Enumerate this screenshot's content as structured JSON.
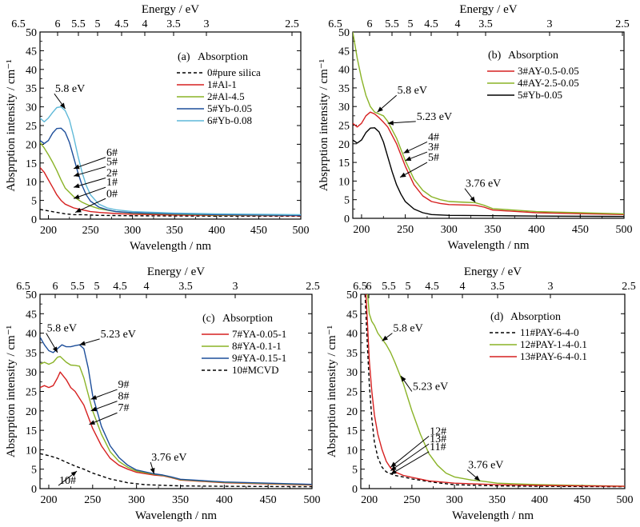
{
  "figure": {
    "background": "#ffffff"
  },
  "chart_data": [
    {
      "type": "line",
      "panel_label": "(a)",
      "title": "Absorption",
      "xlabel": "Wavelength / nm",
      "ylabel": "Absprption intensity / cm⁻¹",
      "top_xlabel": "Energy / eV",
      "xlim": [
        190,
        500
      ],
      "ylim": [
        0,
        50
      ],
      "xticks": [
        200,
        250,
        300,
        350,
        400,
        450,
        500
      ],
      "yticks": [
        0,
        5,
        10,
        15,
        20,
        25,
        30,
        35,
        40,
        45,
        50
      ],
      "top_ticks": [
        "6.5",
        "6",
        "5.5",
        "5",
        "4.5",
        "4",
        "3.5",
        "3",
        "2.5"
      ],
      "grid": false,
      "legend_position": "top-right",
      "series": [
        {
          "name": "0#pure silica",
          "color": "#000000",
          "dash": true,
          "x": [
            190,
            200,
            210,
            220,
            230,
            240,
            260,
            300,
            400,
            500
          ],
          "y": [
            2.6,
            2.2,
            1.8,
            1.4,
            1.2,
            1.2,
            1.0,
            0.9,
            0.8,
            0.8
          ]
        },
        {
          "name": "1#Al-1",
          "color": "#d62020",
          "dash": false,
          "x": [
            190,
            195,
            200,
            205,
            210,
            215,
            220,
            230,
            240,
            250,
            260,
            280,
            300,
            350,
            400,
            500
          ],
          "y": [
            13.8,
            12.5,
            10.5,
            8.5,
            6.5,
            5.0,
            4.0,
            3.0,
            2.5,
            2.0,
            1.8,
            1.5,
            1.3,
            1.1,
            1.0,
            0.9
          ]
        },
        {
          "name": "2#Al-4.5",
          "color": "#8ab327",
          "dash": false,
          "x": [
            190,
            195,
            200,
            205,
            210,
            215,
            220,
            230,
            240,
            250,
            260,
            280,
            300,
            350,
            400,
            500
          ],
          "y": [
            20.5,
            19.0,
            17.2,
            15.2,
            13.0,
            10.5,
            8.3,
            6.0,
            4.5,
            3.5,
            2.8,
            2.0,
            1.6,
            1.3,
            1.1,
            1.0
          ]
        },
        {
          "name": "5#Yb-0.05",
          "color": "#1d4e9a",
          "dash": false,
          "x": [
            190,
            195,
            200,
            205,
            210,
            215,
            220,
            225,
            230,
            235,
            240,
            245,
            250,
            260,
            270,
            280,
            300,
            350,
            400,
            500
          ],
          "y": [
            21.0,
            20.2,
            21.0,
            23.0,
            24.2,
            24.3,
            23.2,
            20.5,
            16.5,
            12.5,
            9.0,
            6.5,
            4.8,
            3.2,
            2.5,
            2.0,
            1.7,
            1.4,
            1.2,
            1.0
          ]
        },
        {
          "name": "6#Yb-0.08",
          "color": "#5fb9d8",
          "dash": false,
          "x": [
            190,
            195,
            200,
            205,
            210,
            215,
            220,
            225,
            230,
            235,
            240,
            245,
            250,
            260,
            270,
            280,
            300,
            350,
            400,
            500
          ],
          "y": [
            27.0,
            26.0,
            27.0,
            28.5,
            29.8,
            30.0,
            29.0,
            26.5,
            22.0,
            17.0,
            12.5,
            9.0,
            6.5,
            4.0,
            3.0,
            2.5,
            2.0,
            1.6,
            1.4,
            1.2
          ]
        }
      ],
      "annotations": [
        {
          "text": "5.8 eV",
          "x": 220,
          "y": 29.5,
          "tx": 207,
          "ty": 33.5
        },
        {
          "text": "6#",
          "x": 230,
          "y": 13.5,
          "tx": 268,
          "ty": 16.5
        },
        {
          "text": "5#",
          "x": 230,
          "y": 11.5,
          "tx": 268,
          "ty": 14.0
        },
        {
          "text": "2#",
          "x": 230,
          "y": 8.5,
          "tx": 268,
          "ty": 11.0
        },
        {
          "text": "1#",
          "x": 230,
          "y": 5.5,
          "tx": 268,
          "ty": 8.5
        },
        {
          "text": "0#",
          "x": 232,
          "y": 1.8,
          "tx": 268,
          "ty": 5.5
        }
      ]
    },
    {
      "type": "line",
      "panel_label": "(b)",
      "title": "Absorption",
      "xlabel": "Wavelength / nm",
      "ylabel": "Absprption intensity / cm⁻¹",
      "top_xlabel": "Energy / eV",
      "xlim": [
        190,
        500
      ],
      "ylim": [
        0,
        50
      ],
      "xticks": [
        200,
        250,
        300,
        350,
        400,
        450,
        500
      ],
      "yticks": [
        0,
        5,
        10,
        15,
        20,
        25,
        30,
        35,
        40,
        45,
        50
      ],
      "top_ticks": [
        "6.5",
        "6",
        "5.5",
        "5",
        "4.5",
        "4",
        "3.5",
        "3",
        "2.5"
      ],
      "grid": false,
      "legend_position": "top-right",
      "series": [
        {
          "name": "3#AY-0.5-0.05",
          "color": "#d62020",
          "dash": false,
          "x": [
            190,
            195,
            200,
            205,
            210,
            215,
            220,
            225,
            230,
            240,
            250,
            260,
            270,
            280,
            290,
            300,
            330,
            340,
            350,
            400,
            500
          ],
          "y": [
            25.5,
            24.5,
            25.5,
            27.5,
            28.5,
            28.0,
            27.0,
            25.8,
            24.5,
            20.0,
            14.0,
            9.0,
            6.0,
            4.5,
            4.0,
            3.7,
            3.5,
            3.0,
            2.2,
            1.5,
            1.0
          ]
        },
        {
          "name": "4#AY-2.5-0.05",
          "color": "#8ab327",
          "dash": false,
          "x": [
            190,
            195,
            200,
            205,
            210,
            215,
            220,
            225,
            230,
            240,
            250,
            260,
            270,
            280,
            290,
            300,
            320,
            330,
            340,
            350,
            400,
            500
          ],
          "y": [
            50,
            43.0,
            37.5,
            33.0,
            30.0,
            28.5,
            28.0,
            27.5,
            26.0,
            21.5,
            15.5,
            10.5,
            7.5,
            5.8,
            5.0,
            4.5,
            4.3,
            4.2,
            3.5,
            2.6,
            1.8,
            1.2
          ]
        },
        {
          "name": "5#Yb-0.05",
          "color": "#000000",
          "dash": false,
          "x": [
            190,
            195,
            200,
            205,
            210,
            215,
            220,
            225,
            230,
            235,
            240,
            245,
            250,
            260,
            270,
            280,
            300,
            350,
            400,
            500
          ],
          "y": [
            21.0,
            20.2,
            21.0,
            23.0,
            24.2,
            24.3,
            23.2,
            20.5,
            16.5,
            12.5,
            9.0,
            6.5,
            4.5,
            2.5,
            1.5,
            1.0,
            0.8,
            0.7,
            0.6,
            0.5
          ]
        }
      ],
      "annotations": [
        {
          "text": "5.8 eV",
          "x": 218,
          "y": 28.5,
          "tx": 240,
          "ty": 33.0
        },
        {
          "text": "5.23 eV",
          "x": 230,
          "y": 25.5,
          "tx": 262,
          "ty": 26.0
        },
        {
          "text": "4#",
          "x": 248,
          "y": 17.5,
          "tx": 275,
          "ty": 20.5
        },
        {
          "text": "3#",
          "x": 250,
          "y": 15.5,
          "tx": 275,
          "ty": 17.8
        },
        {
          "text": "5#",
          "x": 244,
          "y": 11.0,
          "tx": 275,
          "ty": 15.0
        },
        {
          "text": "3.76 eV",
          "x": 330,
          "y": 4.3,
          "tx": 318,
          "ty": 8.0
        }
      ]
    },
    {
      "type": "line",
      "panel_label": "(c)",
      "title": "Absorption",
      "xlabel": "Wavelength / nm",
      "ylabel": "Absprption intensity / cm⁻¹",
      "top_xlabel": "Energy / eV",
      "xlim": [
        190,
        500
      ],
      "ylim": [
        0,
        50
      ],
      "xticks": [
        200,
        250,
        300,
        350,
        400,
        450,
        500
      ],
      "yticks": [
        0,
        5,
        10,
        15,
        20,
        25,
        30,
        35,
        40,
        45,
        50
      ],
      "top_ticks": [
        "6.5",
        "6",
        "5.5",
        "5",
        "4.5",
        "4",
        "3.5",
        "3",
        "2.5"
      ],
      "grid": false,
      "legend_position": "top-right",
      "series": [
        {
          "name": "7#YA-0.05-1",
          "color": "#d62020",
          "dash": false,
          "x": [
            190,
            195,
            200,
            205,
            210,
            213,
            220,
            225,
            230,
            240,
            250,
            260,
            270,
            280,
            290,
            300,
            320,
            330,
            340,
            350,
            400,
            500
          ],
          "y": [
            26.0,
            26.5,
            26.0,
            26.5,
            28.5,
            30.0,
            28.0,
            26.0,
            25.0,
            21.5,
            15.5,
            11.0,
            7.8,
            6.0,
            5.0,
            4.2,
            3.5,
            3.3,
            2.8,
            2.2,
            1.5,
            0.9
          ]
        },
        {
          "name": "8#YA-0.1-1",
          "color": "#8ab327",
          "dash": false,
          "x": [
            190,
            195,
            200,
            205,
            210,
            213,
            220,
            225,
            230,
            235,
            240,
            250,
            260,
            270,
            280,
            290,
            300,
            320,
            330,
            340,
            350,
            400,
            500
          ],
          "y": [
            32.0,
            32.5,
            32.0,
            32.5,
            33.8,
            34.0,
            32.5,
            31.8,
            31.7,
            31.5,
            28.5,
            20.0,
            14.0,
            9.5,
            7.0,
            5.5,
            4.5,
            3.7,
            3.4,
            2.9,
            2.3,
            1.6,
            1.0
          ]
        },
        {
          "name": "9#YA-0.15-1",
          "color": "#1d4e9a",
          "dash": false,
          "x": [
            190,
            195,
            200,
            205,
            210,
            215,
            220,
            225,
            230,
            235,
            240,
            245,
            250,
            260,
            270,
            280,
            290,
            300,
            320,
            330,
            340,
            350,
            400,
            500
          ],
          "y": [
            39.0,
            37.0,
            35.5,
            35.0,
            36.0,
            37.0,
            36.5,
            36.5,
            36.8,
            37.0,
            36.0,
            31.0,
            24.0,
            16.0,
            11.0,
            8.0,
            6.0,
            4.8,
            3.8,
            3.5,
            3.0,
            2.4,
            1.7,
            1.1
          ]
        },
        {
          "name": "10#MCVD",
          "color": "#000000",
          "dash": true,
          "x": [
            190,
            200,
            210,
            220,
            230,
            240,
            250,
            270,
            290,
            310,
            350,
            400,
            500
          ],
          "y": [
            9.0,
            8.5,
            7.8,
            6.8,
            5.8,
            5.0,
            4.0,
            2.5,
            1.5,
            1.0,
            0.7,
            0.6,
            0.5
          ]
        }
      ],
      "annotations": [
        {
          "text": "5.8 eV",
          "x": 210,
          "y": 35.0,
          "tx": 197,
          "ty": 40.0
        },
        {
          "text": "5.23 eV",
          "x": 235,
          "y": 37.0,
          "tx": 258,
          "ty": 38.5
        },
        {
          "text": "9#",
          "x": 248,
          "y": 23.0,
          "tx": 278,
          "ty": 25.5
        },
        {
          "text": "8#",
          "x": 248,
          "y": 20.0,
          "tx": 278,
          "ty": 22.5
        },
        {
          "text": "7#",
          "x": 246,
          "y": 16.5,
          "tx": 278,
          "ty": 19.5
        },
        {
          "text": "3.76 eV",
          "x": 320,
          "y": 3.8,
          "tx": 316,
          "ty": 6.8
        },
        {
          "text": "10#",
          "x": 232,
          "y": 4.5,
          "tx": 211,
          "ty": 0.8
        }
      ]
    },
    {
      "type": "line",
      "panel_label": "(d)",
      "title": "Absorption",
      "xlabel": "Wavelength / nm",
      "ylabel": "Absprption intensity / cm⁻¹",
      "top_xlabel": "Energy / eV",
      "xlim": [
        190,
        500
      ],
      "ylim": [
        0,
        50
      ],
      "xticks": [
        200,
        250,
        300,
        350,
        400,
        450,
        500
      ],
      "yticks": [
        0,
        5,
        10,
        15,
        20,
        25,
        30,
        35,
        40,
        45,
        50
      ],
      "top_ticks": [
        "6.5",
        "6",
        "5.5",
        "5",
        "4.5",
        "4",
        "3.5",
        "3",
        "2.5"
      ],
      "grid": false,
      "legend_position": "top-right",
      "series": [
        {
          "name": "11#PAY-6-4-0",
          "color": "#000000",
          "dash": true,
          "x": [
            195,
            197,
            200,
            203,
            206,
            210,
            215,
            220,
            230,
            240,
            250,
            280,
            300,
            350,
            400,
            500
          ],
          "y": [
            50,
            40.0,
            27.0,
            18.0,
            12.0,
            8.0,
            5.5,
            4.3,
            3.4,
            3.0,
            2.5,
            1.5,
            1.0,
            0.7,
            0.6,
            0.5
          ]
        },
        {
          "name": "12#PAY-1-4-0.1",
          "color": "#8ab327",
          "dash": false,
          "x": [
            198,
            200,
            203,
            206,
            210,
            215,
            220,
            225,
            230,
            240,
            250,
            260,
            270,
            280,
            290,
            300,
            320,
            330,
            340,
            350,
            400,
            500
          ],
          "y": [
            50,
            45.0,
            43.0,
            42.0,
            40.0,
            38.5,
            37.0,
            35.0,
            32.5,
            27.0,
            20.0,
            14.0,
            9.0,
            6.0,
            4.0,
            3.0,
            2.2,
            2.0,
            1.7,
            1.4,
            1.0,
            0.6
          ]
        },
        {
          "name": "13#PAY-6-4-0.1",
          "color": "#d62020",
          "dash": false,
          "x": [
            196,
            198,
            200,
            203,
            206,
            210,
            215,
            220,
            225,
            230,
            240,
            250,
            270,
            300,
            350,
            400,
            500
          ],
          "y": [
            50,
            42.0,
            33.0,
            25.0,
            19.0,
            14.0,
            10.0,
            7.0,
            5.3,
            4.3,
            3.4,
            2.9,
            2.0,
            1.4,
            1.0,
            0.8,
            0.6
          ]
        }
      ],
      "annotations": [
        {
          "text": "5.8 eV",
          "x": 215,
          "y": 38.0,
          "tx": 227,
          "ty": 40.0
        },
        {
          "text": "5.23 eV",
          "x": 237,
          "y": 29.0,
          "tx": 250,
          "ty": 25.0
        },
        {
          "text": "12#",
          "x": 225,
          "y": 5.5,
          "tx": 270,
          "ty": 13.5
        },
        {
          "text": "13#",
          "x": 225,
          "y": 4.6,
          "tx": 270,
          "ty": 11.5
        },
        {
          "text": "11#",
          "x": 225,
          "y": 3.7,
          "tx": 270,
          "ty": 9.5
        },
        {
          "text": "3.76 eV",
          "x": 330,
          "y": 2.0,
          "tx": 315,
          "ty": 4.8
        }
      ]
    }
  ]
}
